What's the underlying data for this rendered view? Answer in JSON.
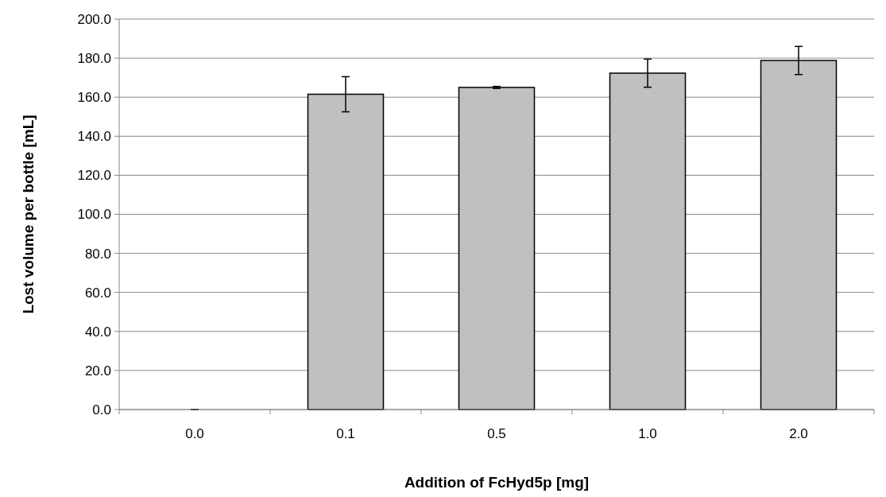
{
  "chart_data": {
    "type": "bar",
    "xlabel": "Addition of FcHyd5p [mg]",
    "ylabel": "Lost volume per bottle [mL]",
    "categories": [
      "0.0",
      "0.1",
      "0.5",
      "1.0",
      "2.0"
    ],
    "values": [
      0,
      161.5,
      165.0,
      172.3,
      178.8
    ],
    "errors": [
      0,
      9.0,
      0.5,
      7.2,
      7.2
    ],
    "color": "#c0c0c0",
    "ylim": [
      0,
      200
    ],
    "yticks": [
      {
        "value": 0,
        "label": "0.0"
      },
      {
        "value": 20,
        "label": "20.0"
      },
      {
        "value": 40,
        "label": "40.0"
      },
      {
        "value": 60,
        "label": "60.0"
      },
      {
        "value": 80,
        "label": "80.0"
      },
      {
        "value": 100,
        "label": "100.0"
      },
      {
        "value": 120,
        "label": "120.0"
      },
      {
        "value": 140,
        "label": "140.0"
      },
      {
        "value": 160,
        "label": "160.0"
      },
      {
        "value": 180,
        "label": "180.0"
      },
      {
        "value": 200,
        "label": "200.0"
      }
    ],
    "grid": "y"
  }
}
